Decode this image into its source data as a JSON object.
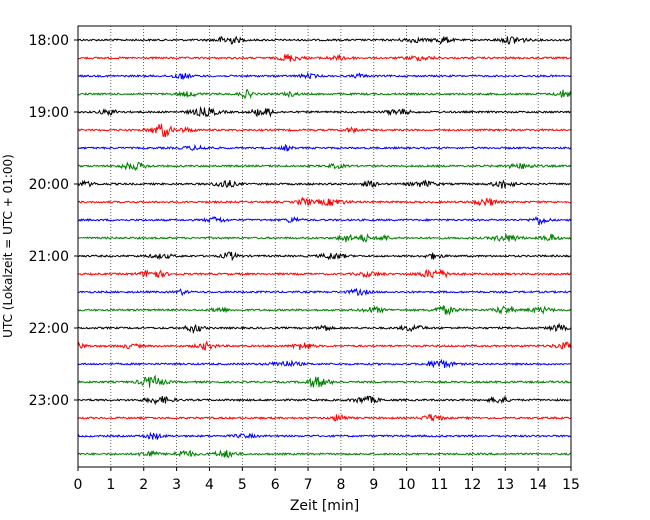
{
  "chart_data": {
    "type": "line",
    "title": "",
    "xlabel": "Zeit  [min]",
    "ylabel": "UTC (Lokalzeit = UTC + 01:00)",
    "xlim": [
      0,
      15
    ],
    "x_ticks": [
      "0",
      "1",
      "2",
      "3",
      "4",
      "5",
      "6",
      "7",
      "8",
      "9",
      "10",
      "11",
      "12",
      "13",
      "14",
      "15"
    ],
    "y_ticks": [
      "18:00",
      "19:00",
      "20:00",
      "21:00",
      "22:00",
      "23:00"
    ],
    "grid": "vertical dotted at each minute",
    "trace_colors": [
      "#000000",
      "#ff0000",
      "#0000ff",
      "#008000"
    ],
    "traces": [
      {
        "start": "18:00",
        "color": "#000000"
      },
      {
        "start": "18:15",
        "color": "#ff0000"
      },
      {
        "start": "18:30",
        "color": "#0000ff"
      },
      {
        "start": "18:45",
        "color": "#008000"
      },
      {
        "start": "19:00",
        "color": "#000000"
      },
      {
        "start": "19:15",
        "color": "#ff0000"
      },
      {
        "start": "19:30",
        "color": "#0000ff"
      },
      {
        "start": "19:45",
        "color": "#008000"
      },
      {
        "start": "20:00",
        "color": "#000000"
      },
      {
        "start": "20:15",
        "color": "#ff0000"
      },
      {
        "start": "20:30",
        "color": "#0000ff"
      },
      {
        "start": "20:45",
        "color": "#008000"
      },
      {
        "start": "21:00",
        "color": "#000000"
      },
      {
        "start": "21:15",
        "color": "#ff0000"
      },
      {
        "start": "21:30",
        "color": "#0000ff"
      },
      {
        "start": "21:45",
        "color": "#008000"
      },
      {
        "start": "22:00",
        "color": "#000000"
      },
      {
        "start": "22:15",
        "color": "#ff0000"
      },
      {
        "start": "22:30",
        "color": "#0000ff"
      },
      {
        "start": "22:45",
        "color": "#008000"
      },
      {
        "start": "23:00",
        "color": "#000000"
      },
      {
        "start": "23:15",
        "color": "#ff0000"
      },
      {
        "start": "23:30",
        "color": "#0000ff"
      },
      {
        "start": "23:45",
        "color": "#008000"
      }
    ]
  }
}
